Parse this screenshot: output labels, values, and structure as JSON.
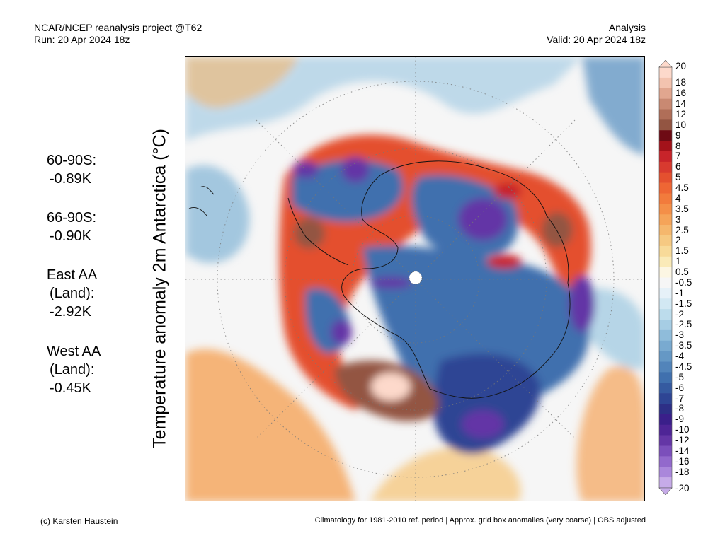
{
  "header": {
    "left_line1": "NCAR/NCEP reanalysis project @T62",
    "left_line2": "Run: 20 Apr 2024 18z",
    "right_line1": "Analysis",
    "right_line2": "Valid: 20 Apr 2024 18z"
  },
  "y_axis_label": "Temperature anomaly 2m Antarctica (°C)",
  "stats": [
    {
      "label_lines": [
        "60-90S:"
      ],
      "value": "-0.89K"
    },
    {
      "label_lines": [
        "66-90S:"
      ],
      "value": "-0.90K"
    },
    {
      "label_lines": [
        "East AA",
        "(Land):"
      ],
      "value": "-2.92K"
    },
    {
      "label_lines": [
        "West AA",
        "(Land):"
      ],
      "value": "-0.45K"
    }
  ],
  "colorbar": {
    "labels": [
      "20",
      "18",
      "16",
      "14",
      "12",
      "10",
      "9",
      "8",
      "7",
      "6",
      "5",
      "4.5",
      "4",
      "3.5",
      "3",
      "2.5",
      "2",
      "1.5",
      "1",
      "0.5",
      "-0.5",
      "-1",
      "-1.5",
      "-2",
      "-2.5",
      "-3",
      "-3.5",
      "-4",
      "-4.5",
      "-5",
      "-6",
      "-7",
      "-8",
      "-9",
      "-10",
      "-12",
      "-14",
      "-16",
      "-18",
      "-20"
    ],
    "colors": [
      "#fdd9cb",
      "#f3c3af",
      "#e1a68f",
      "#c98972",
      "#b06e58",
      "#935542",
      "#6e0b14",
      "#a3121a",
      "#c8242a",
      "#d83a2f",
      "#e4502f",
      "#ee6634",
      "#f27b3c",
      "#f48f48",
      "#f5a459",
      "#f5b76d",
      "#f6c982",
      "#f8da99",
      "#faeab8",
      "#fcf6e3",
      "#f6f6f6",
      "#e6f1f8",
      "#d2e8f3",
      "#bcdcec",
      "#a6cde4",
      "#8fbcda",
      "#79aad0",
      "#6598c5",
      "#5284ba",
      "#4070ae",
      "#355aa0",
      "#2e4594",
      "#2d2f86",
      "#3a1f8a",
      "#4e2596",
      "#6436a6",
      "#7b4fbb",
      "#9269cc",
      "#aa87db",
      "#c6abe8"
    ]
  },
  "map_layers": [
    {
      "color": "#f6f6f6",
      "icon": "light-neutral-anomaly"
    },
    {
      "color": "#f5b76d",
      "icon": "warm-anomaly"
    },
    {
      "color": "#e4502f",
      "icon": "strong-warm-anomaly"
    },
    {
      "color": "#a6cde4",
      "icon": "cool-anomaly"
    },
    {
      "color": "#4070ae",
      "icon": "cold-anomaly"
    },
    {
      "color": "#6436a6",
      "icon": "very-cold-anomaly"
    }
  ],
  "footer": {
    "left": "(c) Karsten Haustein",
    "right": "Climatology for 1981-2010 ref. period | Approx. grid box anomalies (very coarse) | OBS adjusted"
  }
}
